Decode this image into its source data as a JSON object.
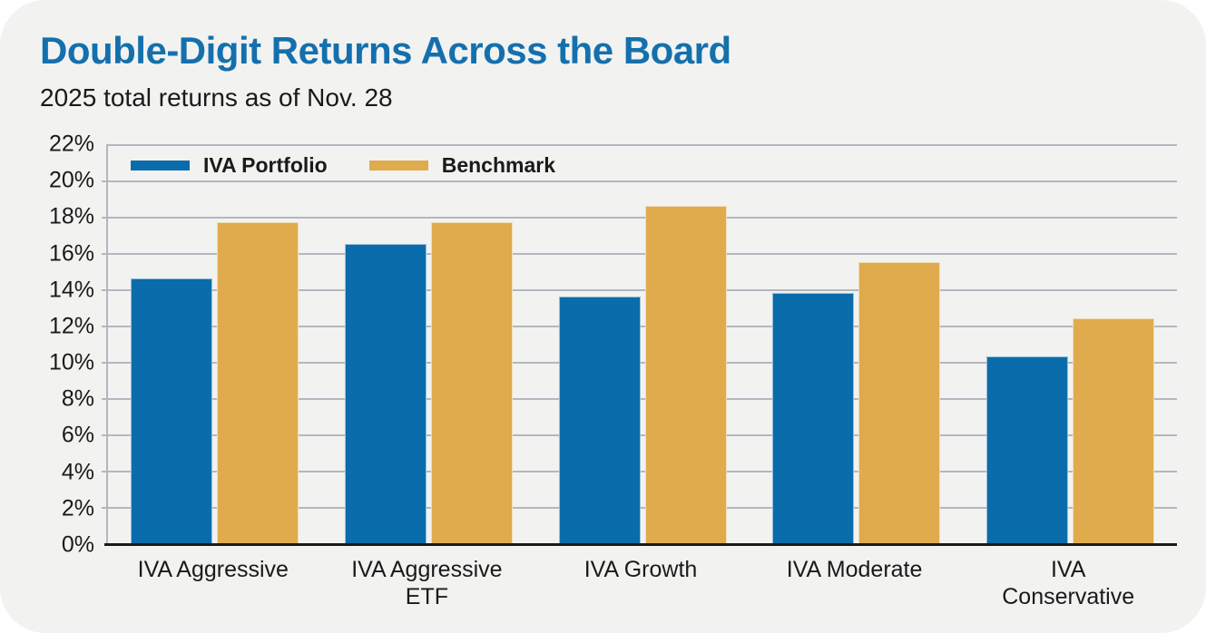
{
  "header": {
    "title": "Double-Digit Returns Across the Board",
    "subtitle": "2025 total returns as of Nov. 28"
  },
  "colors": {
    "title_blue": "#1470ad",
    "portfolio_blue": "#0a6caa",
    "benchmark_gold": "#e0ab4d",
    "card_background": "#f2f2f1",
    "gridline_gray": "#b3b7bf",
    "axis_black": "#1a1a1a",
    "text_black": "#1a1a1a"
  },
  "chart_data": {
    "type": "bar",
    "title": "Double-Digit Returns Across the Board",
    "subtitle": "2025 total returns as of Nov. 28",
    "categories": [
      "IVA Aggressive",
      "IVA Aggressive ETF",
      "IVA Growth",
      "IVA Moderate",
      "IVA Conservative"
    ],
    "category_labels": [
      "IVA Aggressive",
      "IVA Aggressive\nETF",
      "IVA Growth",
      "IVA Moderate",
      "IVA\nConservative"
    ],
    "series": [
      {
        "name": "IVA Portfolio",
        "color": "#0a6caa",
        "values": [
          14.7,
          16.6,
          13.7,
          13.9,
          10.4
        ]
      },
      {
        "name": "Benchmark",
        "color": "#e0ab4d",
        "values": [
          17.8,
          17.8,
          18.7,
          15.6,
          12.5
        ]
      }
    ],
    "xlabel": "",
    "ylabel": "",
    "ylim": [
      0,
      22
    ],
    "ytick_step": 2,
    "ytick_suffix": "%",
    "grid": true,
    "legend_position": "top-left-inside"
  }
}
